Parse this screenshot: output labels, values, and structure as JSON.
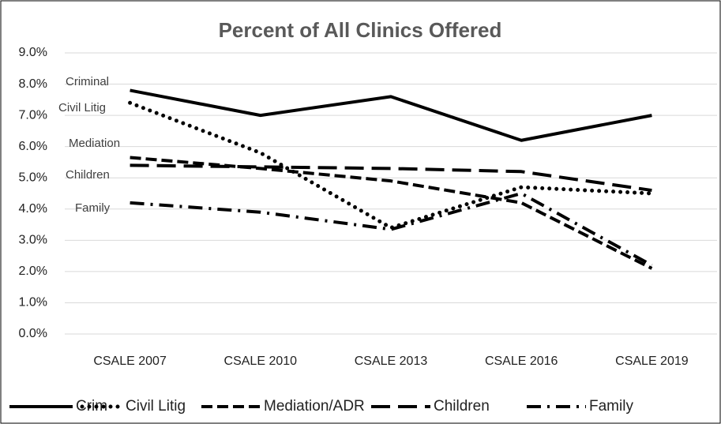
{
  "chart_data": {
    "type": "line",
    "title": "Percent of All Clinics Offered",
    "categories": [
      "CSALE 2007",
      "CSALE 2010",
      "CSALE 2013",
      "CSALE 2016",
      "CSALE 2019"
    ],
    "series": [
      {
        "name": "Crim",
        "color": "#000000",
        "style": "solid",
        "values": [
          7.8,
          7.0,
          7.6,
          6.2,
          7.0
        ]
      },
      {
        "name": "Civil Litig",
        "color": "#000000",
        "style": "dotted",
        "values": [
          7.4,
          5.8,
          3.4,
          4.7,
          4.5
        ]
      },
      {
        "name": "Mediation/ADR",
        "color": "#000000",
        "style": "dashed",
        "values": [
          5.65,
          5.3,
          4.9,
          4.2,
          2.1
        ]
      },
      {
        "name": "Children",
        "color": "#000000",
        "style": "longdash",
        "values": [
          5.4,
          5.35,
          5.3,
          5.2,
          4.6
        ]
      },
      {
        "name": "Family",
        "color": "#000000",
        "style": "dashdot",
        "values": [
          4.2,
          3.9,
          3.35,
          4.5,
          2.2
        ]
      }
    ],
    "annotations": [
      "Criminal",
      "Civil Litig",
      "Mediation",
      "Children",
      "Family"
    ],
    "ylim": [
      0,
      9
    ],
    "yticks": [
      {
        "value": 0,
        "label": "0.0%"
      },
      {
        "value": 1,
        "label": "1.0%"
      },
      {
        "value": 2,
        "label": "2.0%"
      },
      {
        "value": 3,
        "label": "3.0%"
      },
      {
        "value": 4,
        "label": "4.0%"
      },
      {
        "value": 5,
        "label": "5.0%"
      },
      {
        "value": 6,
        "label": "6.0%"
      },
      {
        "value": 7,
        "label": "7.0%"
      },
      {
        "value": 8,
        "label": "8.0%"
      },
      {
        "value": 9,
        "label": "9.0%"
      }
    ],
    "grid": true,
    "legend": "bottom"
  }
}
